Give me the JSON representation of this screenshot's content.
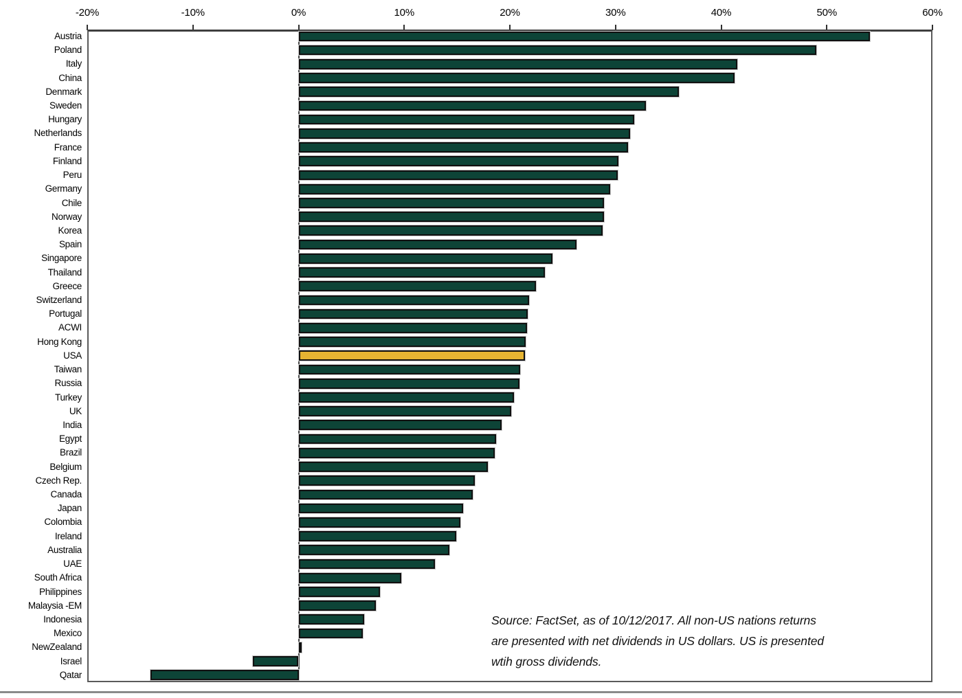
{
  "chart_data": {
    "type": "bar",
    "orientation": "horizontal",
    "title": "",
    "xlabel": "",
    "ylabel": "",
    "xlim": [
      -20,
      60
    ],
    "tick_step": 10,
    "tick_labels": [
      "-20%",
      "-10%",
      "0%",
      "10%",
      "20%",
      "30%",
      "40%",
      "50%",
      "60%"
    ],
    "grid": false,
    "legend": false,
    "bar_color": "#0D4437",
    "highlight_color": "#E6B432",
    "highlight_category": "USA",
    "categories": [
      "Austria",
      "Poland",
      "Italy",
      "China",
      "Denmark",
      "Sweden",
      "Hungary",
      "Netherlands",
      "France",
      "Finland",
      "Peru",
      "Germany",
      "Chile",
      "Norway",
      "Korea",
      "Spain",
      "Singapore",
      "Thailand",
      "Greece",
      "Switzerland",
      "Portugal",
      "ACWI",
      "Hong Kong",
      "USA",
      "Taiwan",
      "Russia",
      "Turkey",
      "UK",
      "India",
      "Egypt",
      "Brazil",
      "Belgium",
      "Czech Rep.",
      "Canada",
      "Japan",
      "Colombia",
      "Ireland",
      "Australia",
      "UAE",
      "South Africa",
      "Philippines",
      "Malaysia -EM",
      "Indonesia",
      "Mexico",
      "NewZealand",
      "Israel",
      "Qatar"
    ],
    "values": [
      54.1,
      49.0,
      41.5,
      41.3,
      36.0,
      32.9,
      31.8,
      31.4,
      31.2,
      30.3,
      30.2,
      29.5,
      28.9,
      28.9,
      28.8,
      26.3,
      24.0,
      23.3,
      22.5,
      21.8,
      21.7,
      21.6,
      21.5,
      21.4,
      21.0,
      20.9,
      20.4,
      20.1,
      19.2,
      18.7,
      18.6,
      17.9,
      16.7,
      16.5,
      15.6,
      15.3,
      14.9,
      14.3,
      12.9,
      9.7,
      7.7,
      7.3,
      6.2,
      6.1,
      0.1,
      -4.3,
      -14.0
    ]
  },
  "source_note": {
    "lines": [
      "Source: FactSet, as of 10/12/2017.  All non-US nations returns",
      "are presented with net dividends in US dollars. US is presented",
      "wtih gross dividends."
    ]
  },
  "colors": {
    "bar_green": "#0D4437",
    "usa_gold": "#E6B432",
    "bar_border": "#101010",
    "axis_line": "#3f3f3f",
    "plot_border": "#5a5a5a",
    "bottom_rule": "#8a8a8a"
  }
}
